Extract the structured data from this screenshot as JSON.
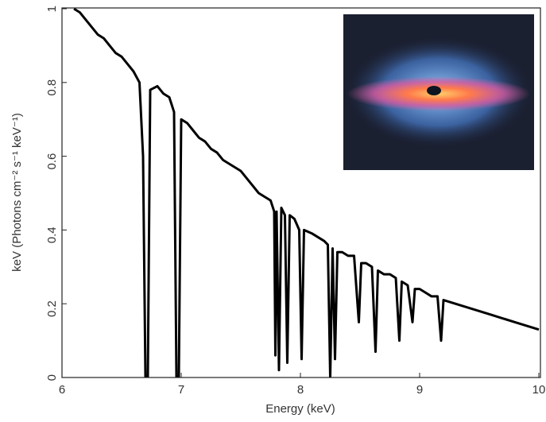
{
  "chart_data": {
    "type": "line",
    "xlabel": "Energy (keV)",
    "ylabel": "keV (Photons cm⁻² s⁻¹ keV⁻¹)",
    "xlim": [
      6,
      10
    ],
    "xticks": [
      6,
      7,
      8,
      9,
      10
    ],
    "ylim": [
      0,
      1
    ],
    "yticks": [
      0,
      0.2,
      0.4,
      0.6,
      0.8,
      1
    ],
    "color": "#000000",
    "x": [
      6.1,
      6.15,
      6.2,
      6.25,
      6.3,
      6.35,
      6.4,
      6.45,
      6.5,
      6.55,
      6.6,
      6.65,
      6.68,
      6.7,
      6.72,
      6.74,
      6.8,
      6.85,
      6.9,
      6.94,
      6.96,
      6.98,
      7.0,
      7.05,
      7.1,
      7.15,
      7.2,
      7.25,
      7.3,
      7.35,
      7.4,
      7.45,
      7.5,
      7.55,
      7.6,
      7.65,
      7.7,
      7.75,
      7.78,
      7.79,
      7.8,
      7.82,
      7.84,
      7.87,
      7.89,
      7.91,
      7.95,
      7.99,
      8.01,
      8.03,
      8.1,
      8.15,
      8.2,
      8.23,
      8.25,
      8.27,
      8.29,
      8.31,
      8.35,
      8.4,
      8.45,
      8.49,
      8.51,
      8.55,
      8.6,
      8.63,
      8.65,
      8.7,
      8.75,
      8.8,
      8.83,
      8.85,
      8.9,
      8.94,
      8.96,
      9.0,
      9.05,
      9.1,
      9.15,
      9.18,
      9.2,
      9.3,
      9.4,
      9.5,
      9.6,
      9.7,
      9.8,
      9.9,
      10.0
    ],
    "values": [
      1.0,
      0.99,
      0.97,
      0.95,
      0.93,
      0.92,
      0.9,
      0.88,
      0.87,
      0.85,
      0.83,
      0.8,
      0.6,
      0.0,
      0.0,
      0.78,
      0.79,
      0.77,
      0.76,
      0.72,
      0.0,
      0.0,
      0.7,
      0.69,
      0.67,
      0.65,
      0.64,
      0.62,
      0.61,
      0.59,
      0.58,
      0.57,
      0.56,
      0.54,
      0.52,
      0.5,
      0.49,
      0.48,
      0.45,
      0.06,
      0.45,
      0.02,
      0.46,
      0.44,
      0.04,
      0.44,
      0.43,
      0.4,
      0.05,
      0.4,
      0.39,
      0.38,
      0.37,
      0.36,
      0.0,
      0.35,
      0.05,
      0.34,
      0.34,
      0.33,
      0.33,
      0.15,
      0.31,
      0.31,
      0.3,
      0.07,
      0.29,
      0.28,
      0.28,
      0.27,
      0.1,
      0.26,
      0.25,
      0.15,
      0.24,
      0.24,
      0.23,
      0.22,
      0.22,
      0.1,
      0.21,
      0.2,
      0.19,
      0.18,
      0.17,
      0.16,
      0.15,
      0.14,
      0.13
    ]
  }
}
